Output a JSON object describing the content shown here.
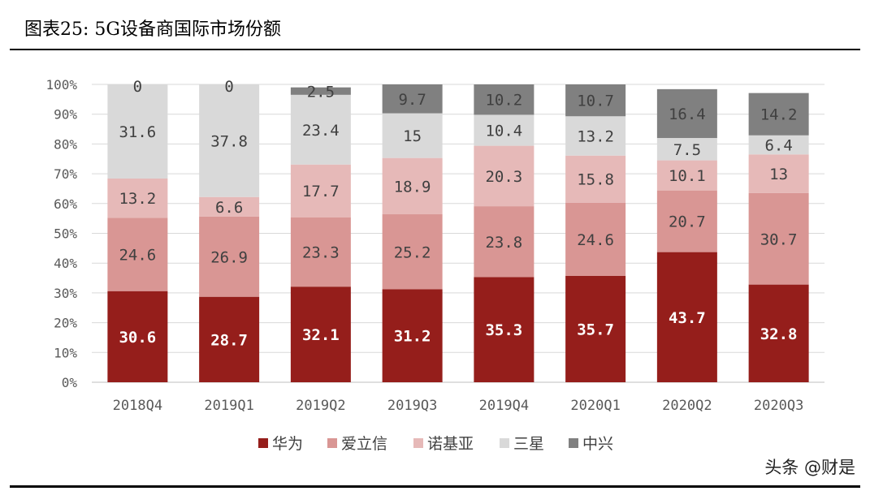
{
  "title": "图表25: 5G设备商国际市场份额",
  "watermark": "头条 @财是",
  "chart_data": {
    "type": "bar",
    "stacked": true,
    "percent": true,
    "categories": [
      "2018Q4",
      "2019Q1",
      "2019Q2",
      "2019Q3",
      "2019Q4",
      "2020Q1",
      "2020Q2",
      "2020Q3"
    ],
    "series": [
      {
        "name": "华为",
        "color": "#951E1B",
        "values": [
          30.6,
          28.7,
          32.1,
          31.2,
          35.3,
          35.7,
          43.7,
          32.8
        ]
      },
      {
        "name": "爱立信",
        "color": "#D99694",
        "values": [
          24.6,
          26.9,
          23.3,
          25.2,
          23.8,
          24.6,
          20.7,
          30.7
        ]
      },
      {
        "name": "诺基亚",
        "color": "#E6B9B8",
        "values": [
          13.2,
          6.6,
          17.7,
          18.9,
          20.3,
          15.8,
          10.1,
          13
        ]
      },
      {
        "name": "三星",
        "color": "#D9D9D9",
        "values": [
          31.6,
          37.8,
          23.4,
          15,
          10.4,
          13.2,
          7.5,
          6.4
        ]
      },
      {
        "name": "中兴",
        "color": "#808080",
        "values": [
          0,
          0,
          2.5,
          9.7,
          10.2,
          10.7,
          16.4,
          14.2
        ]
      }
    ],
    "yticks": [
      "0%",
      "10%",
      "20%",
      "30%",
      "40%",
      "50%",
      "60%",
      "70%",
      "80%",
      "90%",
      "100%"
    ],
    "ylim": [
      0,
      100
    ],
    "grid": true,
    "legend": "bottom"
  }
}
